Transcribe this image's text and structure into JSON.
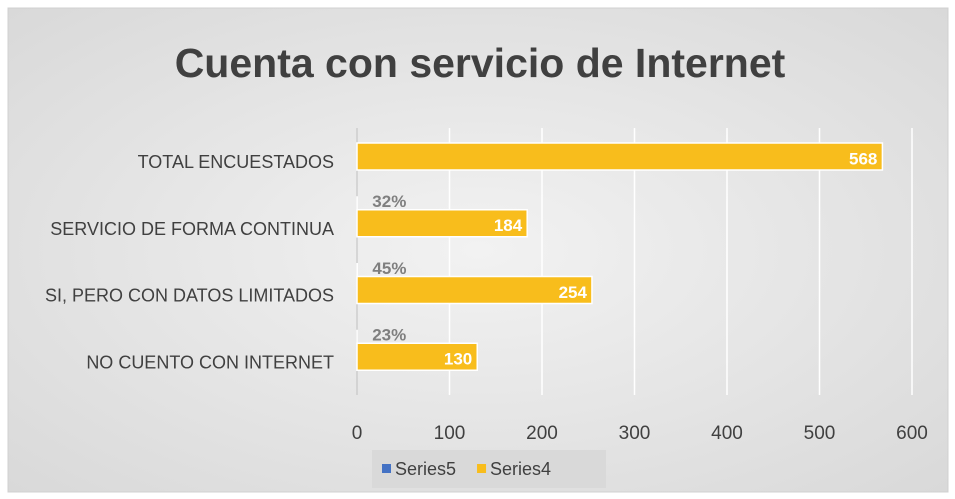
{
  "chart_data": {
    "type": "hbar",
    "title": "Cuenta con servicio de Internet",
    "categories": [
      "TOTAL ENCUESTADOS",
      "SERVICIO DE FORMA CONTINUA",
      "SI, PERO CON DATOS LIMITADOS",
      "NO CUENTO CON INTERNET"
    ],
    "series": [
      {
        "name": "Series5",
        "color": "#4472c4",
        "values": [
          null,
          0.32,
          0.45,
          0.23
        ],
        "value_labels": [
          null,
          "32%",
          "45%",
          "23%"
        ]
      },
      {
        "name": "Series4",
        "color": "#f8bd1c",
        "values": [
          568,
          184,
          254,
          130
        ]
      }
    ],
    "xlim": [
      0,
      600
    ],
    "xticks": [
      0,
      100,
      200,
      300,
      400,
      500,
      600
    ],
    "grid": true,
    "legend": "bottom"
  }
}
